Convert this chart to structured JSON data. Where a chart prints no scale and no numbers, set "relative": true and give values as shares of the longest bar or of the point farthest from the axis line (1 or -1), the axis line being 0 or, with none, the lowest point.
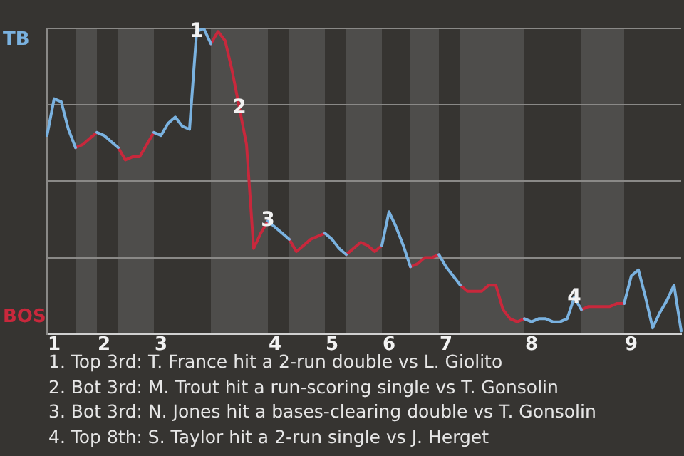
{
  "chart_data": {
    "type": "line",
    "relative": true,
    "categories": [
      null,
      "1",
      null,
      null,
      null,
      null,
      null,
      null,
      "2",
      null,
      null,
      null,
      null,
      null,
      null,
      null,
      "3",
      null,
      null,
      null,
      null,
      null,
      null,
      null,
      null,
      null,
      null,
      null,
      null,
      null,
      null,
      null,
      "4",
      null,
      null,
      null,
      null,
      null,
      null,
      null,
      "5",
      null,
      null,
      null,
      null,
      null,
      null,
      null,
      "6",
      null,
      null,
      null,
      null,
      null,
      null,
      null,
      "7",
      null,
      null,
      null,
      null,
      null,
      null,
      null,
      null,
      null,
      null,
      null,
      "8",
      null,
      null,
      null,
      null,
      null,
      null,
      null,
      null,
      null,
      null,
      null,
      null,
      null,
      "9",
      null,
      null,
      null,
      null,
      null,
      null,
      null
    ],
    "grid": "y",
    "legend": false,
    "marker": "none",
    "line_style": "solid",
    "series": [
      {
        "name": "TB",
        "color": "#7ab2e0",
        "values": [
          0.65,
          0.77,
          0.76,
          0.67,
          0.61,
          null,
          null,
          0.66,
          0.65,
          0.63,
          0.61,
          null,
          null,
          null,
          null,
          0.66,
          0.65,
          0.69,
          0.71,
          0.68,
          0.67,
          0.99,
          1,
          0.95,
          null,
          null,
          null,
          null,
          null,
          null,
          null,
          0.37,
          0.35,
          0.33,
          0.31,
          null,
          null,
          null,
          null,
          0.33,
          0.31,
          0.28,
          0.26,
          null,
          null,
          null,
          null,
          0.29,
          0.4,
          0.35,
          0.29,
          0.22,
          null,
          null,
          null,
          0.26,
          0.22,
          0.19,
          0.16,
          null,
          null,
          null,
          null,
          null,
          null,
          null,
          null,
          0.05,
          0.04,
          0.05,
          0.05,
          0.04,
          0.04,
          0.05,
          0.12,
          0.08,
          null,
          null,
          null,
          null,
          null,
          0.1,
          0.19,
          0.21,
          0.12,
          0.02,
          0.07,
          0.11,
          0.16,
          0.01
        ]
      },
      {
        "name": "BOS",
        "color": "#c8283c",
        "values": [
          null,
          null,
          null,
          null,
          0.61,
          0.62,
          0.64,
          0.66,
          null,
          null,
          0.61,
          0.57,
          0.58,
          0.58,
          0.62,
          0.66,
          null,
          null,
          null,
          null,
          null,
          null,
          null,
          0.95,
          0.99,
          0.96,
          0.86,
          0.74,
          0.62,
          0.28,
          0.33,
          0.37,
          null,
          null,
          0.31,
          0.27,
          0.29,
          0.31,
          0.32,
          0.33,
          null,
          null,
          0.26,
          0.28,
          0.3,
          0.29,
          0.27,
          0.29,
          null,
          null,
          null,
          0.22,
          0.23,
          0.25,
          0.25,
          0.26,
          null,
          null,
          0.16,
          0.14,
          0.14,
          0.14,
          0.16,
          0.16,
          0.08,
          0.05,
          0.04,
          0.05,
          null,
          null,
          null,
          null,
          null,
          null,
          null,
          0.08,
          0.09,
          0.09,
          0.09,
          0.09,
          0.1,
          0.1,
          null,
          null,
          null,
          null,
          null,
          null,
          null,
          null
        ]
      }
    ],
    "annotations": [
      {
        "text": "1",
        "y": 0.99
      },
      {
        "text": "2",
        "y": 0.74
      },
      {
        "text": "3",
        "y": 0.37
      },
      {
        "text": "4",
        "y": 0.12
      },
      "1. Top 3rd: T. France hit a 2-run double vs L. Giolito",
      "2. Bot 3rd: M. Trout hit a run-scoring single vs T. Gonsolin",
      "3. Bot 3rd: N. Jones hit a bases-clearing double vs T. Gonsolin",
      "4. Top 8th: S. Taylor hit a 2-run single vs J. Herget"
    ]
  }
}
